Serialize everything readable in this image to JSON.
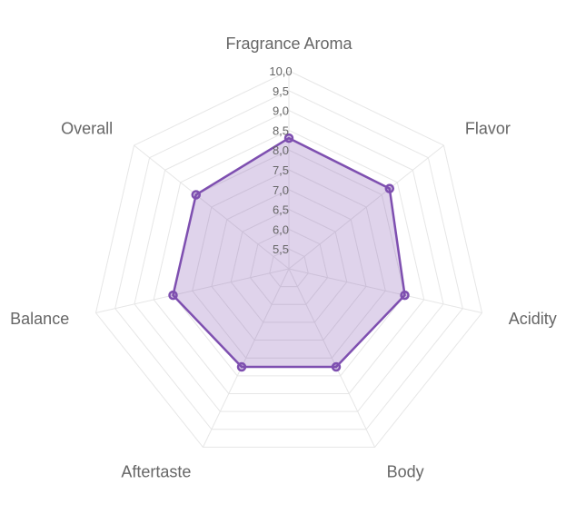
{
  "chart_data": {
    "type": "radar",
    "axes": [
      "Fragrance Aroma",
      "Flavor",
      "Acidity",
      "Body",
      "Aftertaste",
      "Balance",
      "Overall"
    ],
    "series": [
      {
        "values": [
          8.3,
          8.25,
          8.0,
          7.75,
          7.75,
          8.0,
          8.0
        ],
        "color": "#7e4fb0",
        "fill": "rgba(126, 79, 176, 0.25)"
      }
    ],
    "r_min": 5.0,
    "r_max": 10.0,
    "ticks": [
      "5,5",
      "6,0",
      "6,5",
      "7,0",
      "7,5",
      "8,0",
      "8,5",
      "9,0",
      "9,5",
      "10,0"
    ],
    "grid": true,
    "legend": "none"
  }
}
